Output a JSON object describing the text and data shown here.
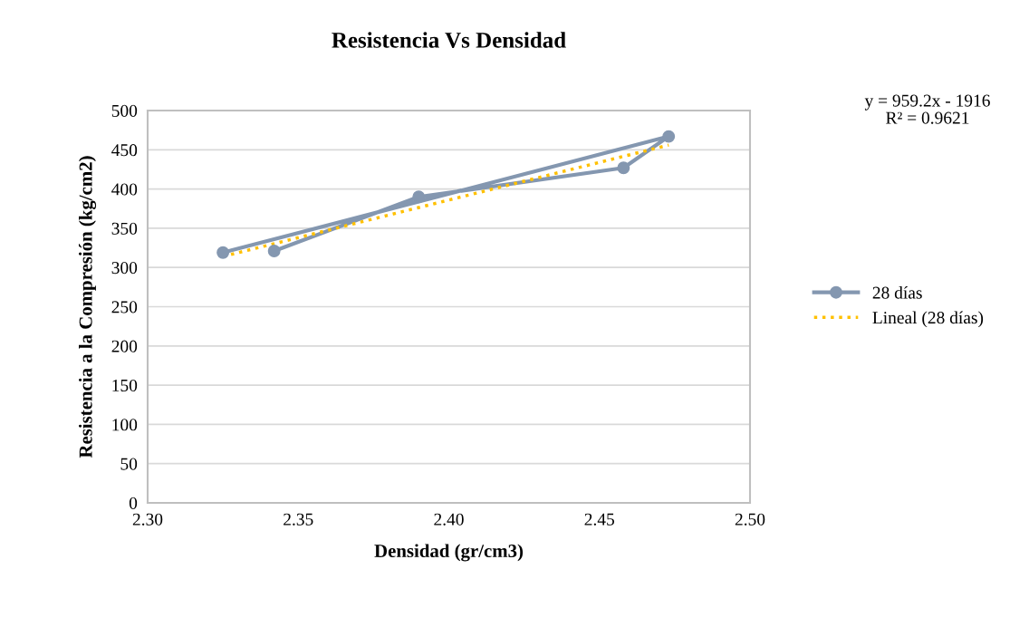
{
  "chart_data": {
    "type": "line",
    "title": "Resistencia Vs Densidad",
    "xlabel": "Densidad (gr/cm3)",
    "ylabel": "Resistencia a la Compresión (kg/cm2)",
    "xlim": [
      2.3,
      2.5
    ],
    "xticks": [
      {
        "value": 2.3,
        "label": "2.30"
      },
      {
        "value": 2.35,
        "label": "2.35"
      },
      {
        "value": 2.4,
        "label": "2.40"
      },
      {
        "value": 2.45,
        "label": "2.45"
      },
      {
        "value": 2.5,
        "label": "2.50"
      }
    ],
    "ylim": [
      0,
      500
    ],
    "yticks": [
      0,
      50,
      100,
      150,
      200,
      250,
      300,
      350,
      400,
      450,
      500
    ],
    "grid": "y",
    "legend": "right",
    "series": [
      {
        "name": "28 días",
        "color": "#8497b0",
        "marker": "circle",
        "line_style": "solid",
        "x": [
          2.325,
          2.473,
          2.458,
          2.39,
          2.342
        ],
        "values": [
          319,
          467,
          427,
          390,
          321
        ]
      },
      {
        "name": "Lineal (28 días)",
        "color": "#ffc000",
        "marker": "none",
        "line_style": "dotted",
        "x": [
          2.325,
          2.473
        ],
        "values": [
          314,
          456
        ]
      }
    ],
    "annotations": [
      "y = 959.2x - 1916\nR² = 0.9621"
    ]
  }
}
